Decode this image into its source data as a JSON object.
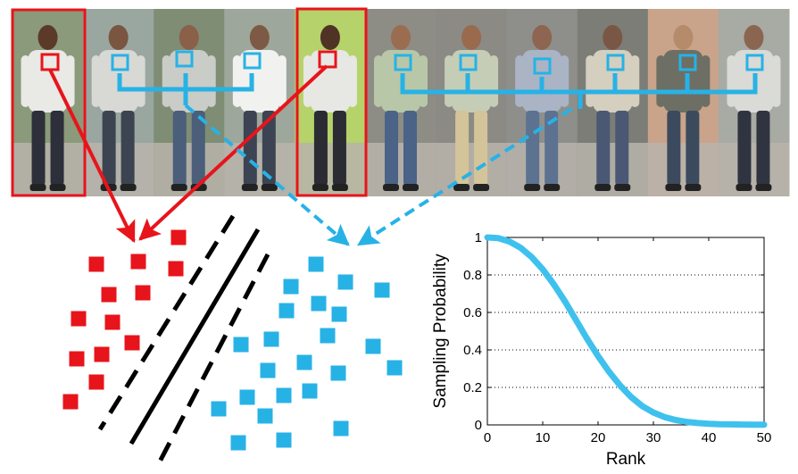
{
  "colors": {
    "positive": "#e8141b",
    "negative": "#27b2e6",
    "separator": "#000000",
    "curve": "#3fc1ee",
    "grid": "#000000"
  },
  "figure": {
    "strip_frames": [
      {
        "group": "positive",
        "shirt": "#e9e9e6",
        "pants": "#2d2f3a",
        "bg": "#8a9a7a",
        "skin": "#5b3a2a"
      },
      {
        "group": "negative",
        "shirt": "#d8d8d4",
        "pants": "#3b4450",
        "bg": "#9aa6a0",
        "skin": "#7a5540"
      },
      {
        "group": "negative",
        "shirt": "#c9ccc7",
        "pants": "#4b5e7a",
        "bg": "#7f8d74",
        "skin": "#8a6048"
      },
      {
        "group": "negative",
        "shirt": "#f1f1ef",
        "pants": "#3c4352",
        "bg": "#9ea79b",
        "skin": "#7d5a45"
      },
      {
        "group": "positive",
        "shirt": "#e7e7e3",
        "pants": "#2a2b33",
        "bg": "#b6d26a",
        "skin": "#4f3325"
      },
      {
        "group": "negative",
        "shirt": "#b8c7a8",
        "pants": "#4a6386",
        "bg": "#8d8c85",
        "skin": "#9b6d50"
      },
      {
        "group": "negative",
        "shirt": "#c5cdb6",
        "pants": "#d4c49a",
        "bg": "#8b8a84",
        "skin": "#9a6a4e"
      },
      {
        "group": "negative",
        "shirt": "#aab4c5",
        "pants": "#5c7290",
        "bg": "#8e8f8b",
        "skin": "#8e6550"
      },
      {
        "group": "negative",
        "shirt": "#d4cfbf",
        "pants": "#4a5874",
        "bg": "#7c7d76",
        "skin": "#7a5745"
      },
      {
        "group": "negative",
        "shirt": "#6d6f64",
        "pants": "#3c4a5e",
        "bg": "#c9a38a",
        "skin": "#b58b6c"
      },
      {
        "group": "negative",
        "shirt": "#dadad6",
        "pants": "#2f3440",
        "bg": "#a8aaa4",
        "skin": "#8a6650"
      }
    ],
    "positive_points": [
      [
        200,
        266
      ],
      [
        108,
        296
      ],
      [
        155,
        293
      ],
      [
        197,
        301
      ],
      [
        122,
        330
      ],
      [
        160,
        328
      ],
      [
        88,
        357
      ],
      [
        126,
        361
      ],
      [
        148,
        384
      ],
      [
        86,
        402
      ],
      [
        114,
        397
      ],
      [
        108,
        428
      ],
      [
        79,
        450
      ]
    ],
    "negative_points": [
      [
        354,
        296
      ],
      [
        387,
        316
      ],
      [
        326,
        321
      ],
      [
        428,
        325
      ],
      [
        357,
        340
      ],
      [
        321,
        348
      ],
      [
        380,
        352
      ],
      [
        367,
        376
      ],
      [
        304,
        380
      ],
      [
        341,
        406
      ],
      [
        270,
        386
      ],
      [
        300,
        415
      ],
      [
        379,
        418
      ],
      [
        418,
        388
      ],
      [
        442,
        412
      ],
      [
        318,
        443
      ],
      [
        347,
        438
      ],
      [
        277,
        445
      ],
      [
        245,
        458
      ],
      [
        297,
        466
      ],
      [
        382,
        480
      ],
      [
        267,
        496
      ],
      [
        318,
        493
      ]
    ]
  },
  "chart_data": {
    "type": "line",
    "title": "",
    "xlabel": "Rank",
    "ylabel": "Sampling Probability",
    "xlim": [
      0,
      50
    ],
    "ylim": [
      0,
      1
    ],
    "xticks": [
      "0",
      "10",
      "20",
      "30",
      "40",
      "50"
    ],
    "yticks": [
      "0",
      "0.2",
      "0.4",
      "0.6",
      "0.8",
      "1"
    ],
    "grid": "horizontal dotted",
    "x": [
      0,
      2,
      4,
      6,
      8,
      10,
      12,
      14,
      16,
      18,
      20,
      22,
      24,
      26,
      28,
      30,
      32,
      34,
      36,
      38,
      40,
      42,
      44,
      46,
      48,
      50
    ],
    "y": [
      1.0,
      0.996,
      0.978,
      0.945,
      0.895,
      0.83,
      0.75,
      0.66,
      0.56,
      0.46,
      0.367,
      0.283,
      0.21,
      0.148,
      0.1,
      0.066,
      0.042,
      0.026,
      0.016,
      0.01,
      0.006,
      0.004,
      0.003,
      0.002,
      0.0015,
      0.001
    ]
  }
}
